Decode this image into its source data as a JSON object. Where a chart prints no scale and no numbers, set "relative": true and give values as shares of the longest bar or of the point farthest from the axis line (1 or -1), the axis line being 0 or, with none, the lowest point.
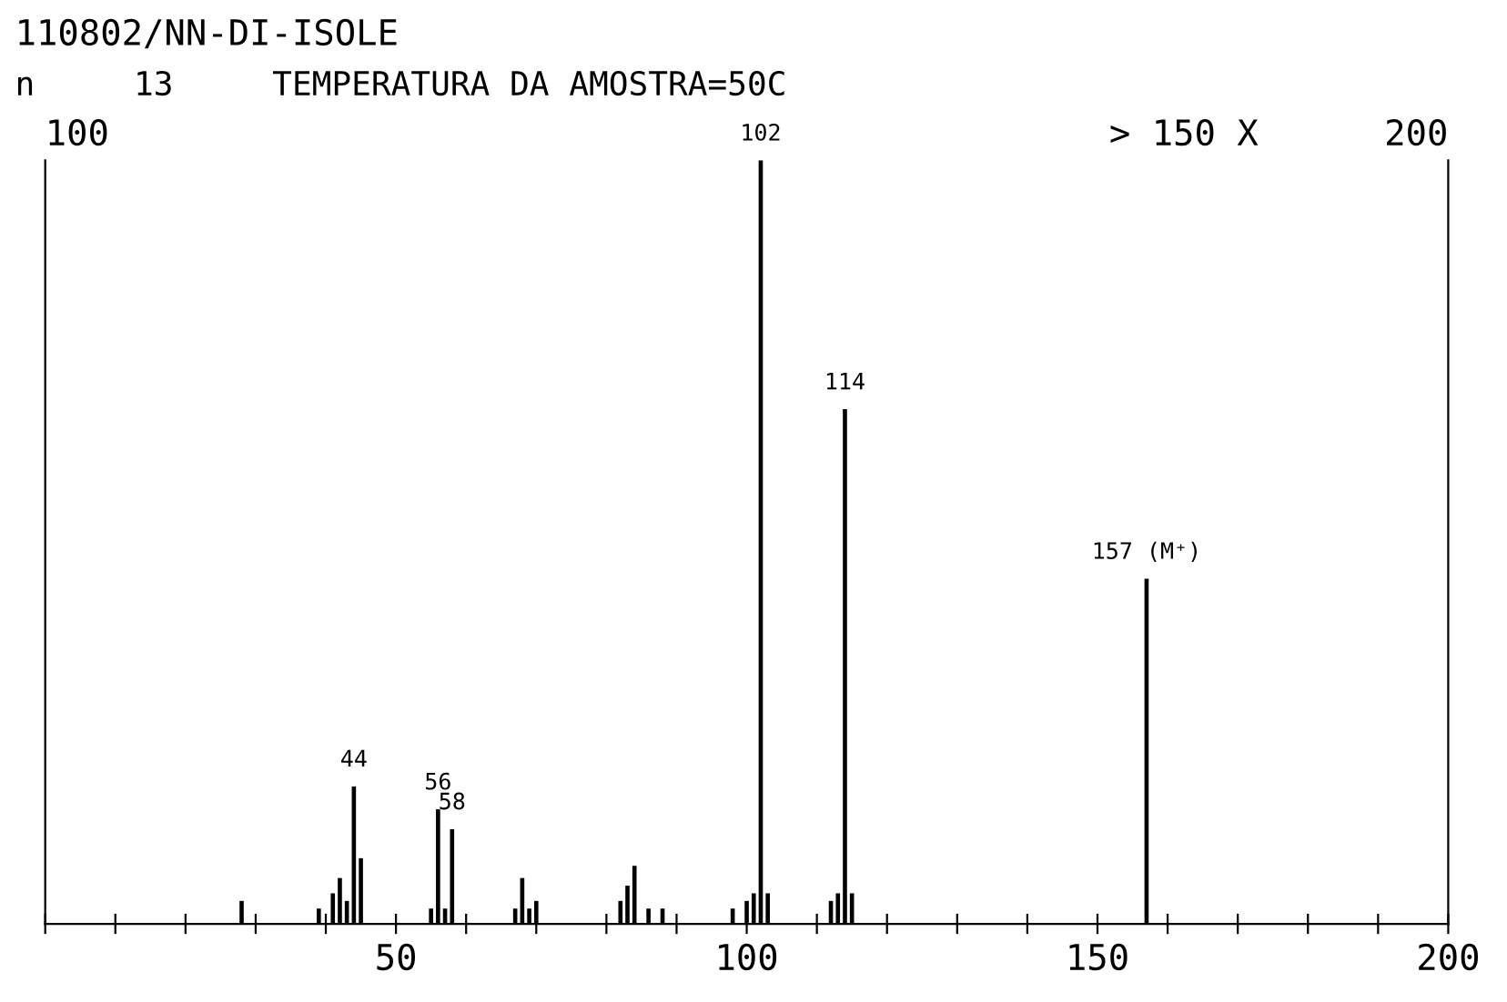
{
  "chart_data": {
    "type": "bar",
    "title": "110802/NN-DI-ISOLE",
    "subtitle": "n     13     TEMPERATURA DA AMOSTRA=50C",
    "relative": true,
    "color": "#000000",
    "x": [
      28,
      39,
      41,
      42,
      43,
      44,
      45,
      55,
      56,
      57,
      58,
      67,
      68,
      69,
      70,
      82,
      83,
      84,
      86,
      88,
      98,
      100,
      101,
      102,
      103,
      112,
      113,
      114,
      115,
      157
    ],
    "values": [
      0.03,
      0.02,
      0.04,
      0.06,
      0.03,
      0.18,
      0.086,
      0.02,
      0.15,
      0.02,
      0.124,
      0.02,
      0.06,
      0.02,
      0.03,
      0.03,
      0.05,
      0.076,
      0.02,
      0.02,
      0.02,
      0.03,
      0.04,
      1.0,
      0.04,
      0.03,
      0.04,
      0.674,
      0.04,
      0.452
    ],
    "xlim": [
      0,
      200
    ],
    "xticks": [
      {
        "value": 0,
        "label": null
      },
      {
        "value": 10,
        "label": null
      },
      {
        "value": 20,
        "label": null
      },
      {
        "value": 30,
        "label": null
      },
      {
        "value": 40,
        "label": null
      },
      50,
      {
        "value": 60,
        "label": null
      },
      {
        "value": 70,
        "label": null
      },
      {
        "value": 80,
        "label": null
      },
      {
        "value": 90,
        "label": null
      },
      100,
      {
        "value": 110,
        "label": null
      },
      {
        "value": 120,
        "label": null
      },
      {
        "value": 130,
        "label": null
      },
      {
        "value": 140,
        "label": null
      },
      150,
      {
        "value": 160,
        "label": null
      },
      {
        "value": 170,
        "label": null
      },
      {
        "value": 180,
        "label": null
      },
      {
        "value": 190,
        "label": null
      },
      200
    ],
    "grid": false,
    "legend": false,
    "annotations": [
      "100",
      "> 150 X",
      "200",
      {
        "text": "44",
        "x": 44,
        "y": 0.18
      },
      {
        "text": "56",
        "x": 56,
        "y": 0.15
      },
      {
        "text": "58",
        "x": 58,
        "y": 0.124
      },
      {
        "text": "102",
        "x": 102,
        "y": 1.0
      },
      {
        "text": "114",
        "x": 114,
        "y": 0.674
      },
      {
        "text": "157 (M⁺)",
        "x": 157,
        "y": 0.452
      }
    ]
  }
}
